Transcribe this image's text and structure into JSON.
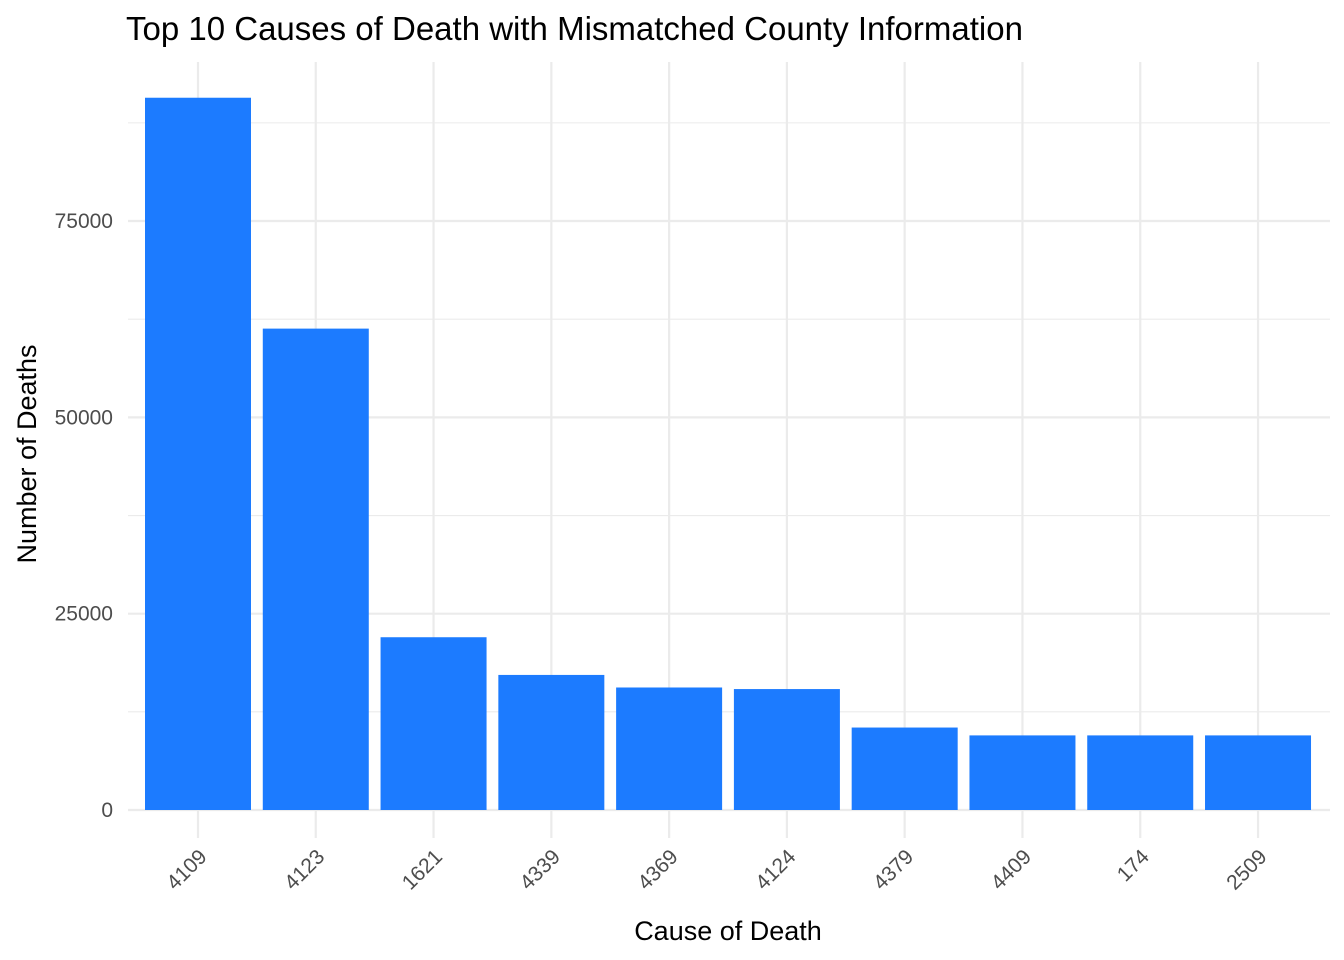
{
  "chart_data": {
    "type": "bar",
    "title": "Top 10 Causes of Death with Mismatched County Information",
    "xlabel": "Cause of Death",
    "ylabel": "Number of Deaths",
    "categories": [
      "4109",
      "4123",
      "1621",
      "4339",
      "4369",
      "4124",
      "4379",
      "4409",
      "174",
      "2509"
    ],
    "values": [
      90700,
      61300,
      22000,
      17200,
      15600,
      15400,
      10500,
      9500,
      9500,
      9500
    ],
    "ylim": [
      0,
      95000
    ],
    "y_ticks": [
      0,
      25000,
      50000,
      75000
    ],
    "y_tick_labels": [
      "0",
      "25000",
      "50000",
      "75000"
    ],
    "x_tick_rotation_deg": 45,
    "bar_color": "#1c7bff",
    "grid": true,
    "grid_color": "#ebebeb",
    "legend": "none"
  }
}
